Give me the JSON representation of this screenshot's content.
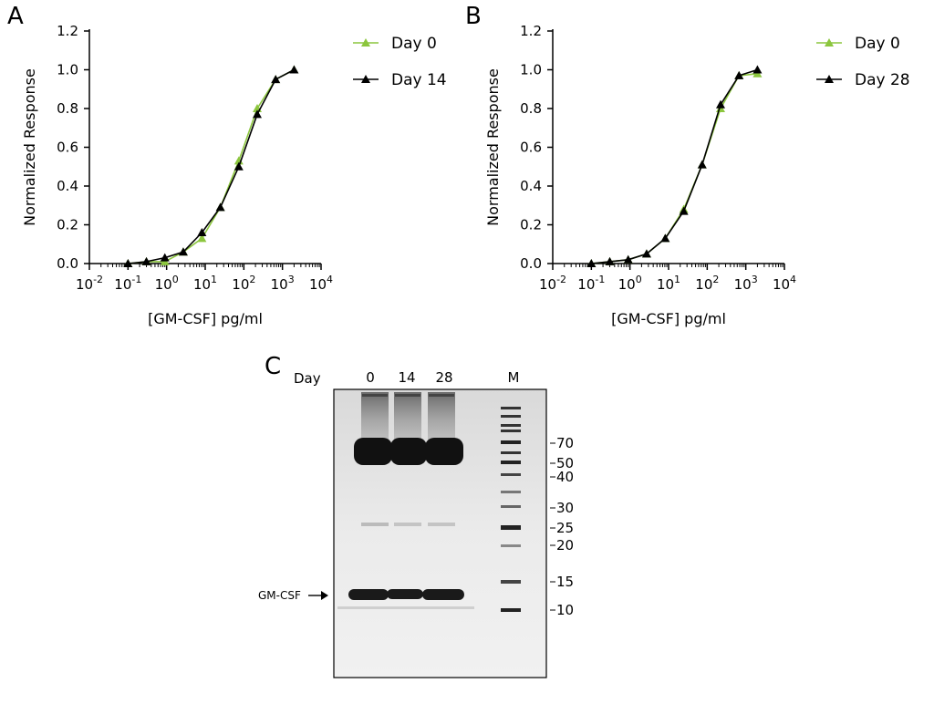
{
  "chart_data": [
    {
      "panel": "A",
      "type": "scatter",
      "xlabel": "[GM-CSF] pg/ml",
      "ylabel": "Normalized Response",
      "xscale": "log",
      "xlim": [
        0.01,
        10000
      ],
      "ylim": [
        0,
        1.2
      ],
      "xticks": [
        {
          "base": "10",
          "exp": "-2"
        },
        {
          "base": "10",
          "exp": "-1"
        },
        {
          "base": "10",
          "exp": "0"
        },
        {
          "base": "10",
          "exp": "1"
        },
        {
          "base": "10",
          "exp": "2"
        },
        {
          "base": "10",
          "exp": "3"
        },
        {
          "base": "10",
          "exp": "4"
        }
      ],
      "yticks": [
        "0.0",
        "0.2",
        "0.4",
        "0.6",
        "0.8",
        "1.0",
        "1.2"
      ],
      "legend_position": "top-right",
      "series": [
        {
          "name": "Day 0",
          "color": "#8cc63e",
          "marker": "triangle",
          "x": [
            0.1,
            0.3,
            0.9,
            2.7,
            8.2,
            24.7,
            74,
            222,
            667,
            2000
          ],
          "y": [
            0.0,
            0.01,
            0.01,
            0.06,
            0.13,
            0.29,
            0.53,
            0.8,
            0.95,
            1.0
          ]
        },
        {
          "name": "Day 14",
          "color": "#000000",
          "marker": "triangle",
          "x": [
            0.1,
            0.3,
            0.9,
            2.7,
            8.2,
            24.7,
            74,
            222,
            667,
            2000
          ],
          "y": [
            0.0,
            0.01,
            0.03,
            0.06,
            0.16,
            0.29,
            0.5,
            0.77,
            0.95,
            1.0
          ]
        }
      ]
    },
    {
      "panel": "B",
      "type": "scatter",
      "xlabel": "[GM-CSF] pg/ml",
      "ylabel": "Normalized Response",
      "xscale": "log",
      "xlim": [
        0.01,
        10000
      ],
      "ylim": [
        0,
        1.2
      ],
      "xticks": [
        {
          "base": "10",
          "exp": "-2"
        },
        {
          "base": "10",
          "exp": "-1"
        },
        {
          "base": "10",
          "exp": "0"
        },
        {
          "base": "10",
          "exp": "1"
        },
        {
          "base": "10",
          "exp": "2"
        },
        {
          "base": "10",
          "exp": "3"
        },
        {
          "base": "10",
          "exp": "4"
        }
      ],
      "yticks": [
        "0.0",
        "0.2",
        "0.4",
        "0.6",
        "0.8",
        "1.0",
        "1.2"
      ],
      "legend_position": "top-right",
      "series": [
        {
          "name": "Day 0",
          "color": "#8cc63e",
          "marker": "triangle",
          "x": [
            0.1,
            0.3,
            0.9,
            2.7,
            8.2,
            24.7,
            74,
            222,
            667,
            2000
          ],
          "y": [
            0.0,
            0.01,
            0.02,
            0.05,
            0.13,
            0.28,
            0.51,
            0.8,
            0.97,
            0.98
          ]
        },
        {
          "name": "Day 28",
          "color": "#000000",
          "marker": "triangle",
          "x": [
            0.1,
            0.3,
            0.9,
            2.7,
            8.2,
            24.7,
            74,
            222,
            667,
            2000
          ],
          "y": [
            0.0,
            0.01,
            0.02,
            0.05,
            0.13,
            0.27,
            0.51,
            0.82,
            0.97,
            1.0
          ]
        }
      ]
    }
  ],
  "gel": {
    "panel": "C",
    "day_label": "Day",
    "lanes": [
      "0",
      "14",
      "28"
    ],
    "marker_lane": "M",
    "mw_markers": [
      "70",
      "50",
      "40",
      "30",
      "25",
      "20",
      "15",
      "10"
    ],
    "band_label": "GM-CSF"
  }
}
